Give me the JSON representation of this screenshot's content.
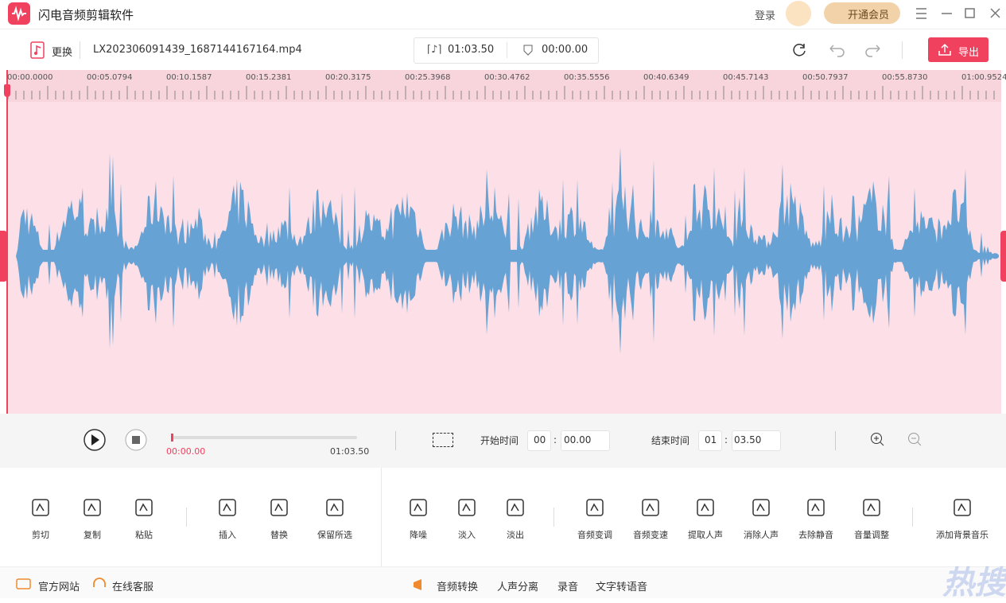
{
  "app": {
    "title": "闪电音频剪辑软件",
    "login": "登录",
    "vip": "开通会员"
  },
  "toolbar": {
    "replace": "更换",
    "file": "LX202306091439_1687144167164.mp4",
    "duration": "01:03.50",
    "position": "00:00.00",
    "export": "导出"
  },
  "ruler": [
    "00:00.0000",
    "00:05.0794",
    "00:10.1587",
    "00:15.2381",
    "00:20.3175",
    "00:25.3968",
    "00:30.4762",
    "00:35.5556",
    "00:40.6349",
    "00:45.7143",
    "00:50.7937",
    "00:55.8730",
    "01:00.9524"
  ],
  "player": {
    "current": "00:00.00",
    "total": "01:03.50",
    "start_label": "开始时间",
    "start_min": "00",
    "start_sec": "00.00",
    "end_label": "结束时间",
    "end_min": "01",
    "end_sec": "03.50",
    "separator": ":"
  },
  "tools": [
    "剪切",
    "复制",
    "粘贴",
    "插入",
    "替换",
    "保留所选",
    "降噪",
    "淡入",
    "淡出",
    "音频变调",
    "音频变速",
    "提取人声",
    "消除人声",
    "去除静音",
    "音量调整",
    "添加背景音乐"
  ],
  "footer": {
    "links": [
      "官方网站",
      "在线客服"
    ],
    "features": [
      "音频转换",
      "人声分离",
      "录音",
      "文字转语音"
    ]
  },
  "watermark": "热搜下载"
}
